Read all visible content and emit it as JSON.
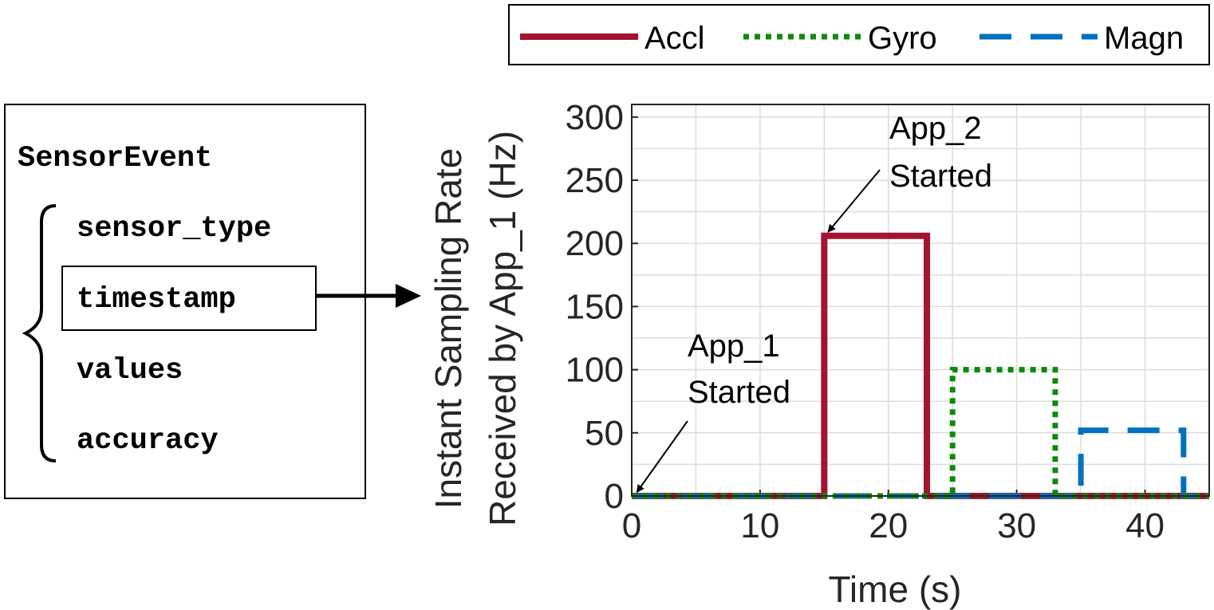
{
  "struct_panel": {
    "title": "SensorEvent",
    "fields": [
      "sensor_type",
      "timestamp",
      "values",
      "accuracy"
    ],
    "highlighted_field": "timestamp"
  },
  "colors": {
    "accl": "#a2142f",
    "gyro": "#0c8a0c",
    "magn": "#0072bd",
    "grid": "#dcdcdc",
    "axis": "#262626"
  },
  "chart_data": {
    "type": "line",
    "xlabel": "Time (s)",
    "ylabel": [
      "Instant Sampling Rate",
      "Received by App_1 (Hz)"
    ],
    "xlim": [
      0,
      45
    ],
    "ylim": [
      0,
      310
    ],
    "xticks": [
      0,
      10,
      20,
      30,
      40
    ],
    "yticks": [
      0,
      50,
      100,
      150,
      200,
      250,
      300
    ],
    "grid": true,
    "legend": {
      "placement": "top-right",
      "orientation": "horizontal"
    },
    "series": [
      {
        "name": "Accl",
        "style": "solid",
        "x": [
          0,
          15,
          15,
          23,
          23,
          45
        ],
        "y": [
          0,
          0,
          206,
          206,
          0,
          0
        ]
      },
      {
        "name": "Gyro",
        "style": "dotted",
        "x": [
          0,
          25,
          25,
          33,
          33,
          45
        ],
        "y": [
          0,
          0,
          100,
          100,
          0,
          0
        ]
      },
      {
        "name": "Magn",
        "style": "dashed",
        "x": [
          0,
          35,
          35,
          43,
          43,
          45
        ],
        "y": [
          0,
          0,
          52,
          52,
          0,
          0
        ]
      }
    ],
    "annotations": [
      {
        "lines": [
          "App_1",
          "Started"
        ],
        "x": 0.4,
        "y": 3
      },
      {
        "lines": [
          "App_2",
          "Started"
        ],
        "x": 15.3,
        "y": 209
      }
    ]
  }
}
